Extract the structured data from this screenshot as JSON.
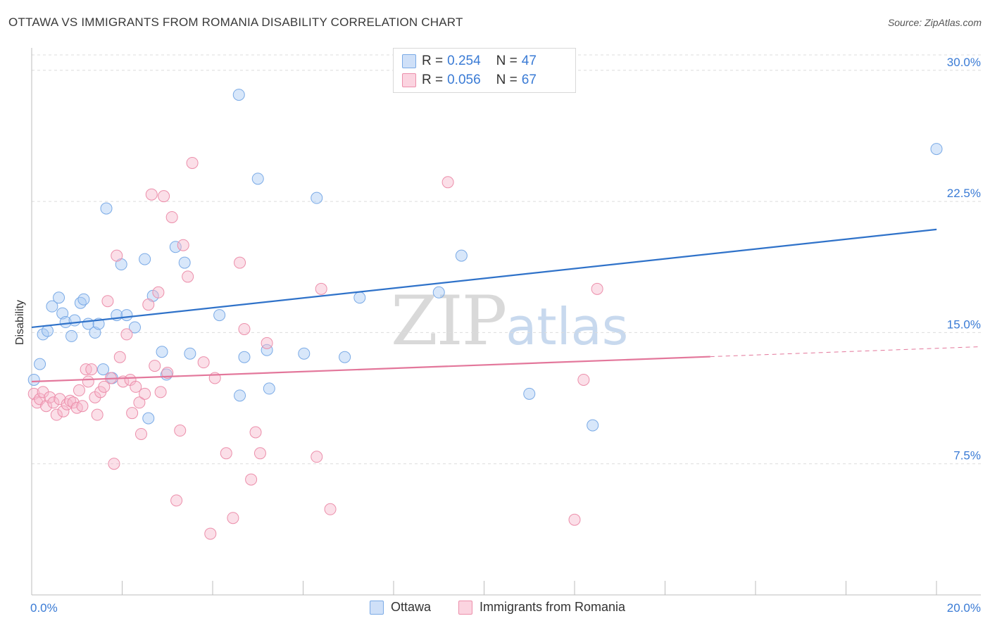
{
  "title": "OTTAWA VS IMMIGRANTS FROM ROMANIA DISABILITY CORRELATION CHART",
  "source": "Source: ZipAtlas.com",
  "watermark": {
    "zip": "ZIP",
    "atlas": "atlas"
  },
  "legend": {
    "rows": [
      {
        "r_label": "R =",
        "r_value": "0.254",
        "n_label": "N =",
        "n_value": "47",
        "color": "#a9c9f3"
      },
      {
        "r_label": "R =",
        "r_value": "0.056",
        "n_label": "N =",
        "n_value": "67",
        "color": "#f6b8cb"
      }
    ],
    "series": [
      {
        "label": "Ottawa",
        "color": "#a9c9f3"
      },
      {
        "label": "Immigrants from Romania",
        "color": "#f6b8cb"
      }
    ]
  },
  "chart_data": {
    "type": "scatter",
    "title": "OTTAWA VS IMMIGRANTS FROM ROMANIA DISABILITY CORRELATION CHART",
    "xlabel": "",
    "ylabel": "Disability",
    "xlim": [
      0,
      20
    ],
    "ylim": [
      0,
      31
    ],
    "x_tick_labels": [
      {
        "value": 0,
        "label": "0.0%"
      },
      {
        "value": 20,
        "label": "20.0%"
      }
    ],
    "y_tick_labels": [
      {
        "value": 7.5,
        "label": "7.5%"
      },
      {
        "value": 15.0,
        "label": "15.0%"
      },
      {
        "value": 22.5,
        "label": "22.5%"
      },
      {
        "value": 30.0,
        "label": "30.0%"
      }
    ],
    "grid": "horizontal dashed",
    "series": [
      {
        "name": "Ottawa",
        "color": "#a9c9f3",
        "stroke": "#7aaae6",
        "trend_color": "#2f72c9",
        "trend": {
          "x0": 0,
          "y0": 15.3,
          "x1": 20,
          "y1": 20.9,
          "dash_from": 20
        },
        "points": [
          [
            0.05,
            12.3
          ],
          [
            0.18,
            13.2
          ],
          [
            0.25,
            14.9
          ],
          [
            0.35,
            15.1
          ],
          [
            0.45,
            16.5
          ],
          [
            0.6,
            17.0
          ],
          [
            0.68,
            16.1
          ],
          [
            0.75,
            15.6
          ],
          [
            0.88,
            14.8
          ],
          [
            0.95,
            15.7
          ],
          [
            1.08,
            16.7
          ],
          [
            1.15,
            16.9
          ],
          [
            1.25,
            15.5
          ],
          [
            1.4,
            15.0
          ],
          [
            1.48,
            15.5
          ],
          [
            1.58,
            12.9
          ],
          [
            1.65,
            22.1
          ],
          [
            1.78,
            12.4
          ],
          [
            1.88,
            16.0
          ],
          [
            1.98,
            18.9
          ],
          [
            2.1,
            16.0
          ],
          [
            2.28,
            15.3
          ],
          [
            2.5,
            19.2
          ],
          [
            2.58,
            10.1
          ],
          [
            2.68,
            17.1
          ],
          [
            2.88,
            13.9
          ],
          [
            2.98,
            12.6
          ],
          [
            3.18,
            19.9
          ],
          [
            3.38,
            19.0
          ],
          [
            3.5,
            13.8
          ],
          [
            4.15,
            16.0
          ],
          [
            4.58,
            28.6
          ],
          [
            4.6,
            11.4
          ],
          [
            4.7,
            13.6
          ],
          [
            5.0,
            23.8
          ],
          [
            5.2,
            14.0
          ],
          [
            5.25,
            11.8
          ],
          [
            6.02,
            13.8
          ],
          [
            6.3,
            22.7
          ],
          [
            6.92,
            13.6
          ],
          [
            7.25,
            17.0
          ],
          [
            8.15,
            29.8
          ],
          [
            9.0,
            17.3
          ],
          [
            9.5,
            19.4
          ],
          [
            11.0,
            11.5
          ],
          [
            12.4,
            9.7
          ],
          [
            20.0,
            25.5
          ]
        ]
      },
      {
        "name": "Immigrants from Romania",
        "color": "#f6b8cb",
        "stroke": "#ec8fab",
        "trend_color": "#e3779b",
        "trend": {
          "x0": 0,
          "y0": 12.2,
          "x1": 20,
          "y1": 14.1,
          "dash_from": 15
        },
        "points": [
          [
            0.05,
            11.5
          ],
          [
            0.12,
            11.0
          ],
          [
            0.18,
            11.2
          ],
          [
            0.25,
            11.6
          ],
          [
            0.32,
            10.8
          ],
          [
            0.4,
            11.3
          ],
          [
            0.48,
            11.0
          ],
          [
            0.55,
            10.3
          ],
          [
            0.62,
            11.2
          ],
          [
            0.7,
            10.5
          ],
          [
            0.78,
            10.9
          ],
          [
            0.85,
            11.1
          ],
          [
            0.92,
            11.0
          ],
          [
            1.0,
            10.7
          ],
          [
            1.05,
            11.7
          ],
          [
            1.12,
            10.8
          ],
          [
            1.2,
            12.9
          ],
          [
            1.25,
            12.2
          ],
          [
            1.32,
            12.9
          ],
          [
            1.4,
            11.3
          ],
          [
            1.45,
            10.3
          ],
          [
            1.52,
            11.6
          ],
          [
            1.6,
            11.9
          ],
          [
            1.68,
            16.8
          ],
          [
            1.75,
            12.4
          ],
          [
            1.82,
            7.5
          ],
          [
            1.88,
            19.4
          ],
          [
            1.95,
            13.6
          ],
          [
            2.02,
            12.2
          ],
          [
            2.1,
            14.9
          ],
          [
            2.18,
            12.3
          ],
          [
            2.22,
            10.4
          ],
          [
            2.3,
            11.9
          ],
          [
            2.38,
            11.0
          ],
          [
            2.42,
            9.2
          ],
          [
            2.5,
            11.5
          ],
          [
            2.58,
            16.6
          ],
          [
            2.65,
            22.9
          ],
          [
            2.72,
            13.1
          ],
          [
            2.8,
            17.3
          ],
          [
            2.85,
            11.6
          ],
          [
            2.92,
            22.8
          ],
          [
            3.0,
            12.7
          ],
          [
            3.1,
            21.6
          ],
          [
            3.2,
            5.4
          ],
          [
            3.28,
            9.4
          ],
          [
            3.35,
            20.0
          ],
          [
            3.45,
            18.2
          ],
          [
            3.55,
            24.7
          ],
          [
            3.8,
            13.3
          ],
          [
            3.95,
            3.5
          ],
          [
            4.05,
            12.4
          ],
          [
            4.3,
            8.1
          ],
          [
            4.45,
            4.4
          ],
          [
            4.6,
            19.0
          ],
          [
            4.7,
            15.2
          ],
          [
            4.85,
            6.6
          ],
          [
            4.95,
            9.3
          ],
          [
            5.05,
            8.1
          ],
          [
            5.2,
            14.4
          ],
          [
            6.3,
            7.9
          ],
          [
            6.4,
            17.5
          ],
          [
            6.6,
            4.9
          ],
          [
            9.2,
            23.6
          ],
          [
            12.0,
            4.3
          ],
          [
            12.2,
            12.3
          ],
          [
            12.5,
            17.5
          ]
        ]
      }
    ]
  }
}
